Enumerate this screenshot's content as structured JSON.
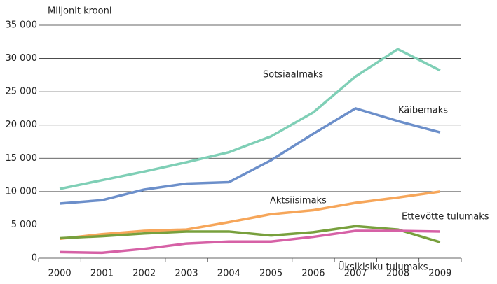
{
  "chart_data": {
    "type": "line",
    "y_axis_label": "Miljonit krooni",
    "categories": [
      "2000",
      "2001",
      "2002",
      "2003",
      "2004",
      "2005",
      "2006",
      "2007",
      "2008",
      "2009"
    ],
    "series": [
      {
        "name": "Sotsiaalmaks",
        "color": "#7fcfb6",
        "values": [
          10400,
          11700,
          13000,
          14400,
          15900,
          18300,
          21900,
          27300,
          31400,
          28200
        ]
      },
      {
        "name": "Käibemaks",
        "color": "#6c8fca",
        "values": [
          8200,
          8700,
          10300,
          11200,
          11400,
          14700,
          18700,
          22500,
          20600,
          18900
        ]
      },
      {
        "name": "Aktsiisimaks",
        "color": "#f6a65a",
        "values": [
          2900,
          3600,
          4100,
          4300,
          5400,
          6600,
          7200,
          8300,
          9100,
          10000
        ]
      },
      {
        "name": "Ettevõtte tulumaks",
        "color": "#78a03d",
        "values": [
          3000,
          3300,
          3700,
          4000,
          4000,
          3400,
          3900,
          4800,
          4300,
          2400
        ]
      },
      {
        "name": "Üksikisiku tulumaks",
        "color": "#d661a6",
        "values": [
          900,
          800,
          1400,
          2200,
          2500,
          2500,
          3200,
          4100,
          4100,
          4000
        ]
      }
    ],
    "ylim": [
      0,
      35000
    ],
    "yticks": [
      0,
      {
        "value": 5000,
        "label": "5 000"
      },
      {
        "value": 10000,
        "label": "10 000"
      },
      {
        "value": 15000,
        "label": "15 000"
      },
      {
        "value": 20000,
        "label": "20 000"
      },
      {
        "value": 25000,
        "label": "25 000"
      },
      {
        "value": 30000,
        "label": "30 000"
      },
      {
        "value": 35000,
        "label": "35 000"
      }
    ],
    "grid": true
  }
}
